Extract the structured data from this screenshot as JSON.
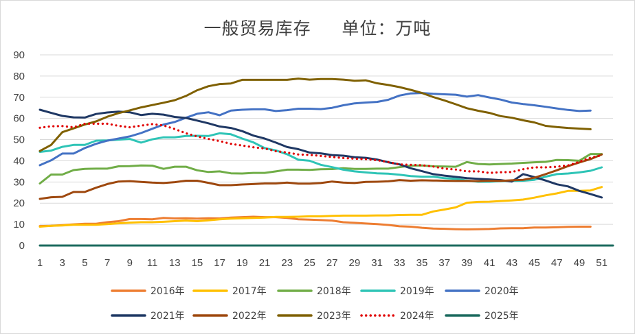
{
  "chart_data": {
    "type": "line",
    "title": "一般贸易库存     单位：万吨",
    "xlabel": "",
    "ylabel": "",
    "xlim": [
      1,
      52
    ],
    "ylim": [
      0,
      90
    ],
    "y_ticks": [
      "0",
      "10",
      "20",
      "30",
      "40",
      "50",
      "60",
      "70",
      "80",
      "90"
    ],
    "x_ticks": [
      "1",
      "3",
      "5",
      "7",
      "9",
      "11",
      "13",
      "15",
      "17",
      "19",
      "21",
      "23",
      "25",
      "27",
      "29",
      "31",
      "33",
      "35",
      "37",
      "39",
      "41",
      "43",
      "45",
      "47",
      "49",
      "51"
    ],
    "grid": true,
    "legend_position": "bottom",
    "series": [
      {
        "name": "2016年",
        "color": "#ed7d31",
        "style": "solid",
        "values": [
          9.2,
          9.3,
          9.6,
          10.0,
          10.3,
          10.3,
          11.0,
          11.5,
          12.5,
          12.5,
          12.4,
          13.0,
          12.8,
          12.9,
          12.7,
          12.9,
          12.8,
          13.2,
          13.4,
          13.6,
          13.4,
          13.4,
          13.0,
          12.4,
          12.2,
          12.0,
          11.8,
          11.0,
          10.7,
          10.4,
          10.1,
          9.7,
          9.1,
          8.9,
          8.4,
          8.0,
          7.9,
          7.7,
          7.6,
          7.7,
          7.8,
          8.1,
          8.2,
          8.2,
          8.5,
          8.5,
          8.6,
          8.8,
          8.9,
          8.9,
          null
        ]
      },
      {
        "name": "2017年",
        "color": "#ffc000",
        "style": "solid",
        "values": [
          8.9,
          9.3,
          9.5,
          9.8,
          9.8,
          9.8,
          10.1,
          10.5,
          10.8,
          11.0,
          11.0,
          11.2,
          11.5,
          11.8,
          11.5,
          11.9,
          12.4,
          12.7,
          12.9,
          13.0,
          13.2,
          13.5,
          13.5,
          13.6,
          13.8,
          13.8,
          14.0,
          14.1,
          14.1,
          14.1,
          14.2,
          14.2,
          14.4,
          14.5,
          14.5,
          16.1,
          17.0,
          18.0,
          20.2,
          20.6,
          20.7,
          21.0,
          21.3,
          21.7,
          22.6,
          23.7,
          24.6,
          25.8,
          25.8,
          26.0,
          27.6
        ]
      },
      {
        "name": "2018年",
        "color": "#70ad47",
        "style": "solid",
        "values": [
          29.3,
          33.5,
          33.5,
          35.6,
          36.2,
          36.3,
          36.3,
          37.4,
          37.5,
          37.8,
          37.7,
          36.2,
          37.2,
          37.2,
          35.5,
          34.7,
          35.0,
          34.1,
          34.0,
          34.3,
          34.3,
          35.0,
          35.8,
          35.8,
          35.7,
          36.0,
          36.1,
          36.5,
          36.2,
          36.2,
          36.3,
          36.3,
          37.0,
          37.7,
          37.8,
          37.4,
          37.3,
          37.2,
          39.4,
          38.5,
          38.3,
          38.5,
          38.7,
          39.0,
          39.3,
          39.5,
          40.4,
          40.3,
          40.0,
          43.2,
          43.2
        ]
      },
      {
        "name": "2019年",
        "color": "#2ec4b6",
        "style": "solid",
        "values": [
          44.2,
          44.8,
          46.6,
          47.5,
          47.5,
          49.5,
          49.6,
          50.0,
          50.3,
          48.6,
          50.1,
          51.1,
          51.1,
          51.7,
          51.8,
          51.7,
          53.0,
          52.5,
          50.5,
          48.7,
          46.0,
          44.9,
          43.1,
          40.5,
          40.0,
          38.1,
          37.0,
          35.8,
          35.0,
          34.5,
          34.1,
          33.9,
          33.4,
          32.8,
          32.5,
          32.5,
          31.8,
          31.5,
          30.7,
          30.1,
          30.1,
          30.4,
          30.5,
          30.6,
          31.0,
          32.5,
          33.7,
          34.0,
          34.5,
          35.3,
          36.9
        ]
      },
      {
        "name": "2020年",
        "color": "#4472c4",
        "style": "solid",
        "values": [
          37.9,
          40.2,
          43.4,
          43.4,
          46.0,
          48.0,
          49.5,
          50.5,
          51.5,
          53.1,
          55.1,
          57.1,
          58.3,
          60.3,
          62.2,
          62.9,
          61.5,
          63.7,
          64.1,
          64.3,
          64.3,
          63.5,
          63.9,
          64.6,
          64.6,
          64.4,
          65.0,
          66.2,
          67.1,
          67.5,
          67.8,
          68.8,
          70.8,
          71.8,
          72.0,
          71.6,
          71.4,
          71.2,
          70.3,
          71.0,
          69.9,
          68.9,
          67.5,
          66.8,
          66.2,
          65.5,
          64.7,
          64.0,
          63.5,
          63.7,
          null
        ]
      },
      {
        "name": "2021年",
        "color": "#1f3864",
        "style": "solid",
        "values": [
          64.1,
          62.6,
          61.2,
          60.5,
          60.4,
          62.1,
          62.8,
          63.2,
          62.9,
          61.6,
          62.2,
          61.8,
          60.7,
          60.2,
          59.0,
          57.7,
          56.2,
          55.5,
          54.0,
          51.9,
          50.5,
          48.6,
          46.5,
          45.5,
          43.9,
          43.5,
          42.7,
          42.4,
          41.7,
          41.4,
          40.6,
          39.3,
          38.3,
          36.5,
          35.1,
          33.7,
          33.0,
          32.4,
          31.8,
          31.5,
          31.2,
          30.9,
          30.2,
          33.7,
          32.3,
          30.7,
          28.9,
          27.9,
          25.8,
          24.3,
          22.7
        ]
      },
      {
        "name": "2022年",
        "color": "#9e480e",
        "style": "solid",
        "values": [
          22.0,
          22.8,
          23.0,
          25.3,
          25.3,
          27.3,
          29.0,
          30.2,
          30.4,
          30.0,
          29.7,
          29.5,
          29.9,
          30.6,
          30.6,
          29.6,
          28.5,
          28.5,
          28.8,
          29.0,
          29.3,
          29.3,
          29.7,
          29.2,
          29.2,
          29.5,
          30.2,
          29.7,
          29.5,
          30.0,
          30.1,
          30.3,
          30.9,
          30.6,
          30.8,
          30.7,
          30.6,
          30.5,
          30.5,
          30.4,
          30.6,
          30.5,
          30.8,
          31.0,
          32.0,
          33.7,
          35.5,
          37.5,
          39.2,
          40.8,
          43.0
        ]
      },
      {
        "name": "2023年",
        "color": "#7f6000",
        "style": "solid",
        "values": [
          44.6,
          47.5,
          53.5,
          55.3,
          57.1,
          58.6,
          60.8,
          62.5,
          63.8,
          65.2,
          66.3,
          67.4,
          68.6,
          70.6,
          73.3,
          75.2,
          76.2,
          76.5,
          78.2,
          78.2,
          78.2,
          78.2,
          78.2,
          78.8,
          78.3,
          78.6,
          78.6,
          78.3,
          77.8,
          78.0,
          76.6,
          75.8,
          74.8,
          73.5,
          72.0,
          70.1,
          68.5,
          66.7,
          64.8,
          63.6,
          62.6,
          61.1,
          60.3,
          59.1,
          58.1,
          56.5,
          55.9,
          55.5,
          55.2,
          54.9,
          null
        ]
      },
      {
        "name": "2024年",
        "color": "#e00000",
        "style": "dotted",
        "values": [
          55.6,
          56.3,
          56.4,
          55.8,
          57.5,
          57.5,
          57.5,
          56.5,
          55.8,
          56.6,
          57.3,
          56.7,
          55.0,
          53.0,
          51.5,
          50.3,
          49.3,
          48.0,
          47.2,
          46.4,
          45.8,
          44.5,
          43.9,
          43.0,
          42.8,
          42.3,
          41.8,
          41.3,
          41.0,
          40.8,
          40.3,
          39.4,
          38.3,
          38.1,
          37.9,
          37.3,
          36.3,
          35.9,
          35.0,
          35.0,
          34.3,
          34.6,
          34.7,
          36.0,
          36.9,
          36.9,
          37.2,
          37.8,
          39.5,
          41.5,
          42.5
        ]
      },
      {
        "name": "2025年",
        "color": "#1b6a5e",
        "style": "solid",
        "values": []
      }
    ]
  }
}
